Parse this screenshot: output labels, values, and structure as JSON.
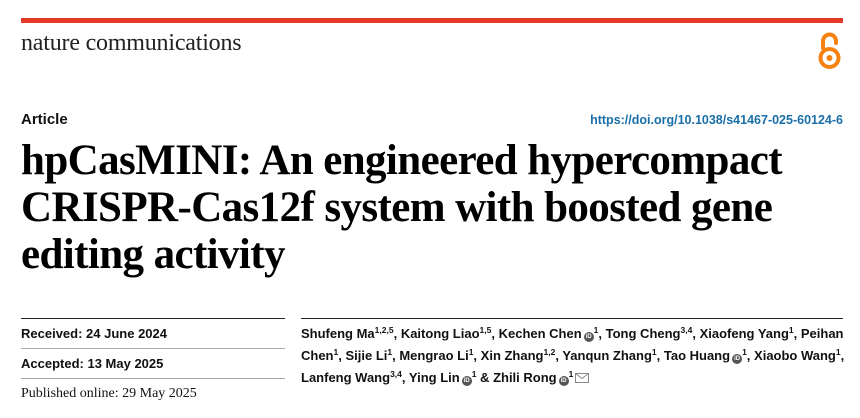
{
  "journal": {
    "name": "nature communications",
    "open_access_icon": "open-access-lock-icon"
  },
  "article": {
    "type": "Article",
    "doi": "https://doi.org/10.1038/s41467-025-60124-6",
    "title_lines": [
      "hpCasMINI: An engineered hypercompact",
      "CRISPR-Cas12f system with boosted gene",
      "editing activity"
    ]
  },
  "dates": [
    {
      "label": "Received:",
      "value": "24 June 2024"
    },
    {
      "label": "Accepted:",
      "value": "13 May 2025"
    },
    {
      "label": "Published online:",
      "value": "29 May 2025"
    }
  ],
  "authors": [
    {
      "name": "Shufeng Ma",
      "sup": "1,2,5",
      "orcid": false,
      "sep": ", "
    },
    {
      "name": "Kaitong Liao",
      "sup": "1,5",
      "orcid": false,
      "sep": ", "
    },
    {
      "name": "Kechen Chen",
      "sup": "1",
      "orcid": true,
      "sep": ", "
    },
    {
      "name": "Tong Cheng",
      "sup": "3,4",
      "orcid": false,
      "sep": ", "
    },
    {
      "name": "Xiaofeng Yang",
      "sup": "1",
      "orcid": false,
      "sep": ", "
    },
    {
      "name": "Peihan Chen",
      "sup": "1",
      "orcid": false,
      "sep": ", "
    },
    {
      "name": "Sijie Li",
      "sup": "1",
      "orcid": false,
      "sep": ", "
    },
    {
      "name": "Mengrao Li",
      "sup": "1",
      "orcid": false,
      "sep": ", "
    },
    {
      "name": "Xin Zhang",
      "sup": "1,2",
      "orcid": false,
      "sep": ", "
    },
    {
      "name": "Yanqun Zhang",
      "sup": "1",
      "orcid": false,
      "sep": ", "
    },
    {
      "name": "Tao Huang",
      "sup": "1",
      "orcid": true,
      "sep": ", "
    },
    {
      "name": "Xiaobo Wang",
      "sup": "1",
      "orcid": false,
      "sep": ", "
    },
    {
      "name": "Lanfeng Wang",
      "sup": "3,4",
      "orcid": false,
      "sep": ", "
    },
    {
      "name": "Ying Lin",
      "sup": "1",
      "orcid": true,
      "sep": " & "
    },
    {
      "name": "Zhili Rong",
      "sup": "1",
      "orcid": true,
      "sep": "",
      "email": true
    }
  ],
  "colors": {
    "accent_red": "#e53a27",
    "doi_blue": "#1a6fa8",
    "oa_orange": "#f68212"
  }
}
